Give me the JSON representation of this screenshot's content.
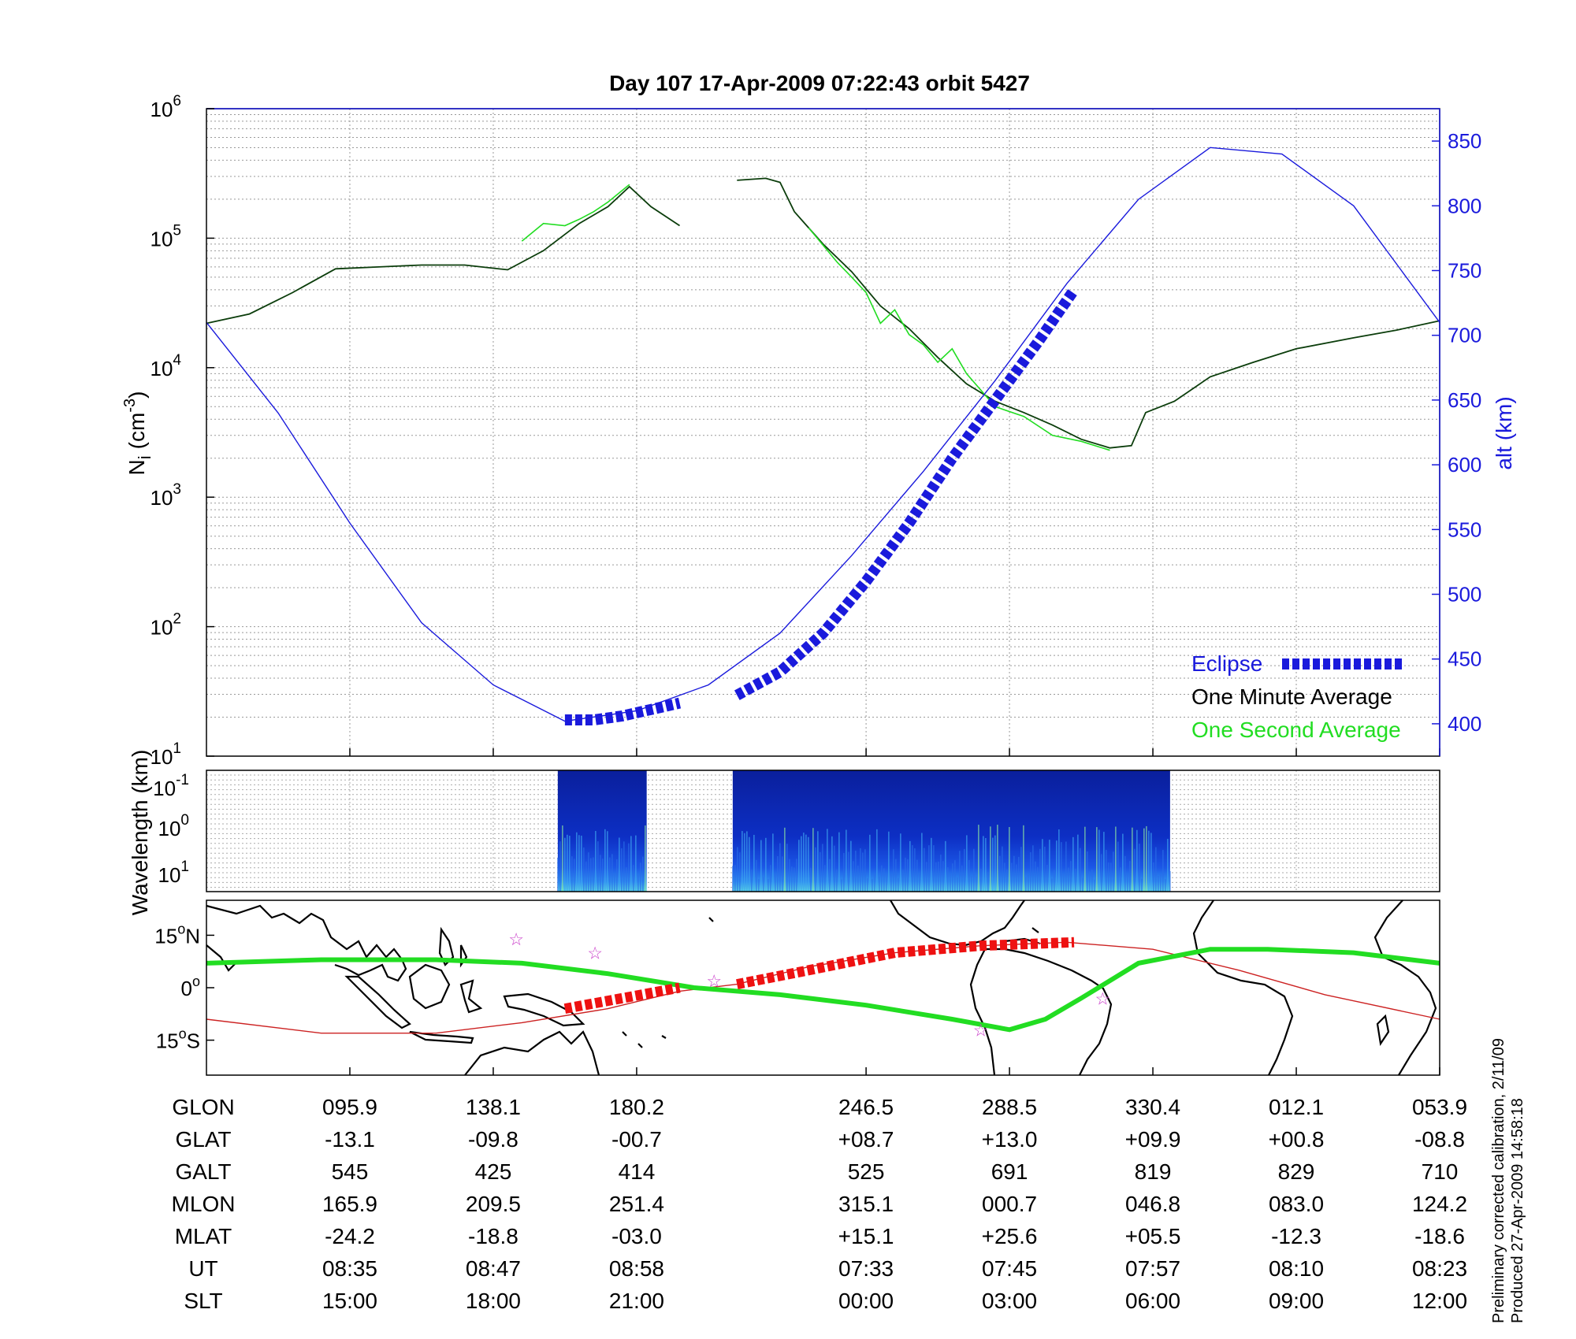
{
  "chart_data": [
    {
      "type": "line",
      "title": "Day 107  17-Apr-2009 07:22:43   orbit 5427",
      "ylabel_left": "N_i (cm^-3)",
      "ylabel_left_base": "N",
      "ylabel_left_sub": "i",
      "ylabel_left_unit": "(cm",
      "ylabel_left_exp": "-3",
      "ylabel_left_close": ")",
      "ylabel_right": "alt (km)",
      "yscale_left": "log",
      "ylim_left": [
        10,
        1000000
      ],
      "yticks_left": [
        {
          "base": "10",
          "exp": "1",
          "value": 10
        },
        {
          "base": "10",
          "exp": "2",
          "value": 100
        },
        {
          "base": "10",
          "exp": "3",
          "value": 1000
        },
        {
          "base": "10",
          "exp": "4",
          "value": 10000
        },
        {
          "base": "10",
          "exp": "5",
          "value": 100000
        },
        {
          "base": "10",
          "exp": "6",
          "value": 1000000
        }
      ],
      "ylim_right": [
        375,
        875
      ],
      "yticks_right": [
        "400",
        "450",
        "500",
        "550",
        "600",
        "650",
        "700",
        "750",
        "800",
        "850"
      ],
      "xlim": [
        0,
        8.6
      ],
      "grid": true,
      "legend_position": "bottom-right",
      "legend": [
        {
          "label": "Eclipse",
          "color": "#1a1adc",
          "style": "dashed-thick"
        },
        {
          "label": "One Minute Average",
          "color": "#000000"
        },
        {
          "label": "One Second Average",
          "color": "#22dd22"
        }
      ],
      "series": [
        {
          "name": "One Minute Average",
          "color": "#0b3d0b",
          "segments": [
            {
              "x": [
                0,
                0.3,
                0.6,
                0.9,
                1.2,
                1.5,
                1.8,
                2.1,
                2.35,
                2.6,
                2.8,
                2.95,
                3.1,
                3.3
              ],
              "y": [
                22000,
                26000,
                38000,
                58000,
                60000,
                62000,
                62000,
                57000,
                80000,
                130000,
                175000,
                250000,
                175000,
                125000
              ]
            },
            {
              "x": [
                3.7,
                3.9,
                4.0,
                4.1,
                4.3,
                4.5,
                4.7,
                4.9,
                5.1,
                5.3,
                5.5,
                5.7,
                5.9,
                6.1,
                6.3,
                6.45,
                6.55,
                6.75,
                7.0,
                7.3,
                7.6,
                8.0,
                8.3,
                8.6
              ],
              "y": [
                280000,
                290000,
                270000,
                160000,
                90000,
                55000,
                30000,
                20000,
                12000,
                7500,
                5500,
                4500,
                3600,
                2800,
                2400,
                2500,
                4500,
                5500,
                8500,
                11000,
                14000,
                17000,
                19500,
                23000
              ]
            }
          ]
        },
        {
          "name": "One Second Average",
          "color": "#22dd22",
          "segments": [
            {
              "x": [
                2.2,
                2.35,
                2.5,
                2.6,
                2.7,
                2.8,
                2.95
              ],
              "y": [
                95000,
                130000,
                125000,
                140000,
                160000,
                190000,
                260000
              ]
            },
            {
              "x": [
                4.2,
                4.4,
                4.5,
                4.6,
                4.7,
                4.8,
                4.9,
                5.0,
                5.1,
                5.2,
                5.3,
                5.5,
                5.7,
                5.9,
                6.1,
                6.3
              ],
              "y": [
                120000,
                65000,
                50000,
                38000,
                22000,
                28000,
                18000,
                15000,
                11000,
                14000,
                9000,
                5000,
                4200,
                3000,
                2700,
                2300
              ]
            }
          ]
        },
        {
          "name": "alt (km)",
          "axis": "right",
          "color": "#1a1adc",
          "x": [
            0,
            0.5,
            1.0,
            1.5,
            2.0,
            2.5,
            3.0,
            3.5,
            4.0,
            4.5,
            5.0,
            5.5,
            6.0,
            6.5,
            7.0,
            7.5,
            8.0,
            8.6
          ],
          "y": [
            710,
            640,
            555,
            478,
            430,
            402,
            410,
            430,
            470,
            530,
            595,
            665,
            740,
            805,
            845,
            840,
            800,
            710
          ]
        },
        {
          "name": "Eclipse",
          "axis": "right",
          "color": "#1a1adc",
          "segments": [
            {
              "x": [
                2.5,
                2.7,
                2.9,
                3.1,
                3.3
              ],
              "y": [
                403,
                403,
                406,
                411,
                416
              ]
            },
            {
              "x": [
                3.7,
                4.0,
                4.3,
                4.6,
                4.9,
                5.2,
                5.5,
                5.8,
                6.05
              ],
              "y": [
                422,
                440,
                470,
                510,
                555,
                605,
                650,
                695,
                735
              ]
            }
          ]
        }
      ]
    },
    {
      "type": "heatmap",
      "ylabel": "Wavelength (km)",
      "yscale": "log",
      "yticks": [
        {
          "base": "10",
          "exp": "-1"
        },
        {
          "base": "10",
          "exp": "0"
        },
        {
          "base": "10",
          "exp": "1"
        }
      ],
      "data_blocks": [
        {
          "x_start": 2.45,
          "x_end": 3.07
        },
        {
          "x_start": 3.67,
          "x_end": 6.72
        }
      ]
    },
    {
      "type": "map",
      "yticks": [
        {
          "deg": "15",
          "hem": "N"
        },
        {
          "deg": "0",
          "hem": ""
        },
        {
          "deg": "15",
          "hem": "S"
        }
      ],
      "ylim": [
        -25,
        25
      ],
      "magnetic_equator": {
        "color": "#22dd22",
        "x": [
          0,
          0.8,
          1.6,
          2.2,
          2.8,
          3.4,
          4.0,
          4.6,
          5.2,
          5.6,
          5.85,
          6.1,
          6.5,
          7.0,
          7.4,
          8.0,
          8.6
        ],
        "lat": [
          7,
          8,
          8,
          7,
          4,
          0,
          -2,
          -5,
          -9,
          -12,
          -9,
          -3,
          7,
          11,
          11,
          10,
          7
        ]
      },
      "orbit_track": {
        "color": "#cc2222",
        "x": [
          0,
          0.8,
          1.6,
          2.2,
          2.8,
          3.3,
          3.7,
          4.2,
          4.8,
          5.4,
          6.0,
          6.6,
          7.2,
          7.8,
          8.6
        ],
        "lat": [
          -9,
          -13,
          -13,
          -10,
          -6,
          -1,
          1,
          6,
          10,
          12,
          13,
          11,
          5,
          -2,
          -9
        ]
      },
      "eclipse_track": {
        "color": "#ee1111",
        "segments": [
          {
            "x": [
              2.5,
              2.9,
              3.3
            ],
            "lat": [
              -6,
              -3,
              0
            ]
          },
          {
            "x": [
              3.7,
              4.2,
              4.8,
              5.4,
              6.05
            ],
            "lat": [
              1,
              5,
              10,
              12,
              13
            ]
          }
        ]
      },
      "stars": [
        {
          "x": 2.16,
          "lat": 14
        },
        {
          "x": 2.71,
          "lat": 10
        },
        {
          "x": 3.54,
          "lat": 2
        },
        {
          "x": 5.4,
          "lat": -12
        },
        {
          "x": 6.25,
          "lat": -3
        }
      ]
    }
  ],
  "table": {
    "x": [
      1.0,
      2.0,
      3.0,
      4.6,
      5.6,
      6.6,
      7.6,
      8.6
    ],
    "rows": [
      {
        "label": "GLON",
        "values": [
          "095.9",
          "138.1",
          "180.2",
          "246.5",
          "288.5",
          "330.4",
          "012.1",
          "053.9"
        ]
      },
      {
        "label": "GLAT",
        "values": [
          "-13.1",
          "-09.8",
          "-00.7",
          "+08.7",
          "+13.0",
          "+09.9",
          "+00.8",
          "-08.8"
        ]
      },
      {
        "label": "GALT",
        "values": [
          "545",
          "425",
          "414",
          "525",
          "691",
          "819",
          "829",
          "710"
        ]
      },
      {
        "label": "MLON",
        "values": [
          "165.9",
          "209.5",
          "251.4",
          "315.1",
          "000.7",
          "046.8",
          "083.0",
          "124.2"
        ]
      },
      {
        "label": "MLAT",
        "values": [
          "-24.2",
          "-18.8",
          "-03.0",
          "+15.1",
          "+25.6",
          "+05.5",
          "-12.3",
          "-18.6"
        ]
      },
      {
        "label": "UT",
        "values": [
          "08:35",
          "08:47",
          "08:58",
          "07:33",
          "07:45",
          "07:57",
          "08:10",
          "08:23"
        ]
      },
      {
        "label": "SLT",
        "values": [
          "15:00",
          "18:00",
          "21:00",
          "00:00",
          "03:00",
          "06:00",
          "09:00",
          "12:00"
        ]
      }
    ]
  },
  "notes": {
    "line1": "Preliminary corrected calibration, 2/11/09",
    "line2": "Produced 27-Apr-2009 14:58:18"
  }
}
